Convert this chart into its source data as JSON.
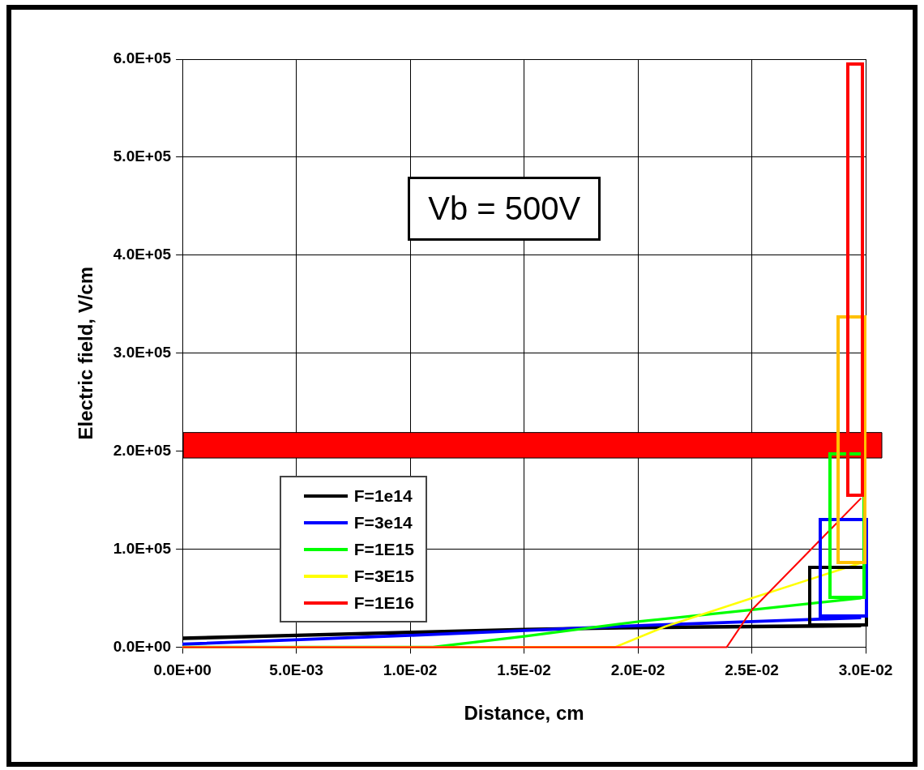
{
  "chart_data": {
    "type": "line",
    "xlabel": "Distance, cm",
    "ylabel": "Electric field, V/cm",
    "annotations": [
      "Vb = 500V"
    ],
    "xlim": [
      0,
      0.03
    ],
    "xticks": [
      {
        "value": 0,
        "label": "0.0E+00"
      },
      {
        "value": 0.005,
        "label": "5.0E-03"
      },
      {
        "value": 0.01,
        "label": "1.0E-02"
      },
      {
        "value": 0.015,
        "label": "1.5E-02"
      },
      {
        "value": 0.02,
        "label": "2.0E-02"
      },
      {
        "value": 0.025,
        "label": "2.5E-02"
      },
      {
        "value": 0.03,
        "label": "3.0E-02"
      }
    ],
    "ylim": [
      0,
      600000
    ],
    "yticks": [
      {
        "value": 0,
        "label": "0.0E+00"
      },
      {
        "value": 100000,
        "label": "1.0E+05"
      },
      {
        "value": 200000,
        "label": "2.0E+05"
      },
      {
        "value": 300000,
        "label": "3.0E+05"
      },
      {
        "value": 400000,
        "label": "4.0E+05"
      },
      {
        "value": 500000,
        "label": "5.0E+05"
      },
      {
        "value": 600000,
        "label": "6.0E+05"
      }
    ],
    "series": [
      {
        "name": "F=1e14",
        "color": "#000000",
        "x": [
          0,
          0.005,
          0.01,
          0.015,
          0.02,
          0.025,
          0.0298
        ],
        "values": [
          9000,
          12000,
          15000,
          18000,
          20000,
          21000,
          22000
        ]
      },
      {
        "name": "F=3e14",
        "color": "#0000ff",
        "x": [
          0,
          0.01,
          0.02,
          0.025,
          0.0298
        ],
        "values": [
          3000,
          12000,
          22000,
          26000,
          30000
        ]
      },
      {
        "name": "F=1E15",
        "color": "#00ff00",
        "x": [
          0,
          0.011,
          0.015,
          0.02,
          0.025,
          0.0298
        ],
        "values": [
          0,
          0,
          11000,
          26000,
          38000,
          50000
        ]
      },
      {
        "name": "F=3E15",
        "color": "#ffff00",
        "x": [
          0,
          0.019,
          0.0212,
          0.025,
          0.0298
        ],
        "values": [
          0,
          0,
          21000,
          50000,
          86000
        ]
      },
      {
        "name": "F=1E16",
        "color": "#ff0000",
        "x": [
          0,
          0.0239,
          0.025,
          0.0298
        ],
        "values": [
          0,
          0,
          38000,
          152000
        ]
      }
    ],
    "bands": [
      {
        "axis": "y",
        "from": 193000,
        "to": 219000,
        "color": "#ff0000"
      }
    ],
    "grid": true,
    "legend": "bottom left",
    "marker": "none",
    "line_style": "solid"
  }
}
